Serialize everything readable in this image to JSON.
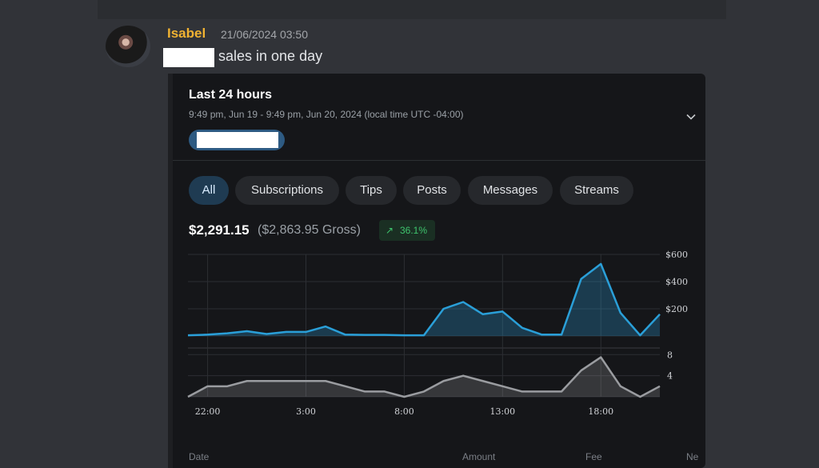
{
  "message": {
    "author": "Isabel",
    "author_color": "#f0b232",
    "timestamp": "21/06/2024 03:50",
    "text": "sales in one day"
  },
  "embed": {
    "title": "Last 24 hours",
    "subtitle": "9:49 pm, Jun 19 - 9:49 pm, Jun 20, 2024 (local time UTC -04:00)",
    "tabs": [
      {
        "label": "All",
        "active": true
      },
      {
        "label": "Subscriptions",
        "active": false
      },
      {
        "label": "Tips",
        "active": false
      },
      {
        "label": "Posts",
        "active": false
      },
      {
        "label": "Messages",
        "active": false
      },
      {
        "label": "Streams",
        "active": false
      }
    ],
    "net_amount": "$2,291.15",
    "gross_amount": "($2,863.95 Gross)",
    "change": {
      "arrow": "↗",
      "value": "36.1%"
    },
    "footer_headers": [
      "Date",
      "Amount",
      "Fee",
      "Ne"
    ],
    "icons": {
      "expand": "chevron-down-icon",
      "change": "trend-up-arrow-icon"
    }
  },
  "chart_data": [
    {
      "type": "area",
      "title": "",
      "x_ticks": [
        "22:00",
        "3:00",
        "8:00",
        "13:00",
        "18:00"
      ],
      "y_ticks": [
        "$600",
        "$400",
        "$200"
      ],
      "ylim": [
        0,
        600
      ],
      "grid": true,
      "color": "#2a9fd8",
      "values": [
        5,
        10,
        20,
        35,
        15,
        30,
        30,
        70,
        10,
        8,
        8,
        5,
        5,
        200,
        250,
        160,
        180,
        60,
        10,
        10,
        420,
        530,
        170,
        5,
        160
      ]
    },
    {
      "type": "area",
      "title": "",
      "y_ticks": [
        "8",
        "4"
      ],
      "ylim": [
        0,
        8.5
      ],
      "grid": true,
      "color": "#9a9ca0",
      "values": [
        0,
        2,
        2,
        3,
        3,
        3,
        3,
        3,
        2,
        1,
        1,
        0,
        1,
        3,
        4,
        3,
        2,
        1,
        1,
        1,
        5,
        7.5,
        2,
        0,
        2
      ]
    }
  ]
}
